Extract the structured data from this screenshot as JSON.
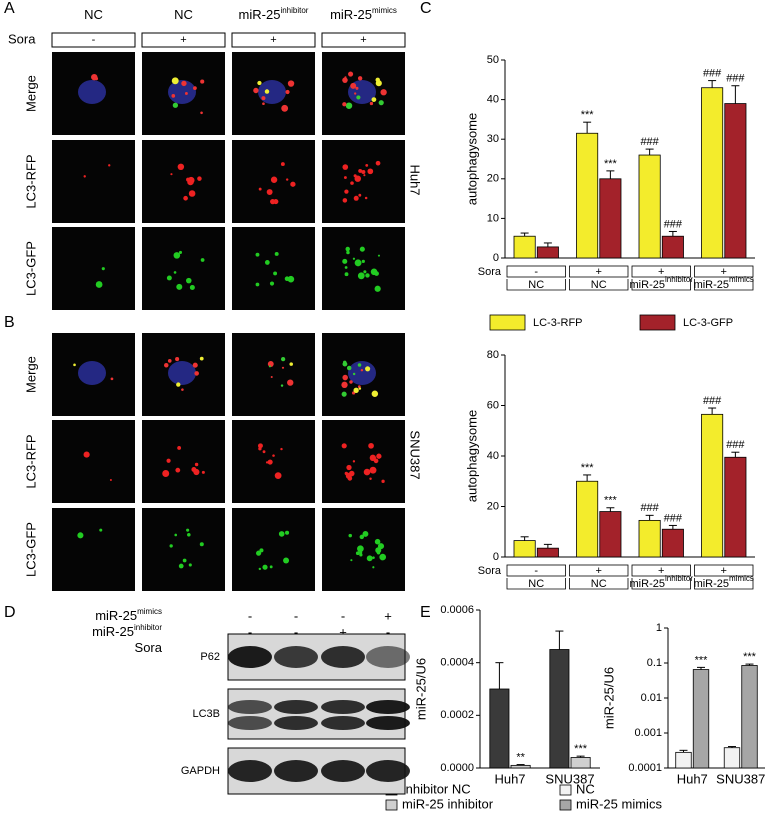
{
  "panel_labels": [
    "A",
    "B",
    "C",
    "D",
    "E"
  ],
  "microscopy": {
    "columns": [
      {
        "text": "NC"
      },
      {
        "text": "NC"
      },
      {
        "text": "miR-25",
        "sup": "inhibitor"
      },
      {
        "text": "miR-25",
        "sup": "mimics"
      }
    ],
    "sora_label": "Sora",
    "sora": [
      "-",
      "+",
      "+",
      "+"
    ],
    "rows": [
      "Merge",
      "LC3-RFP",
      "LC3-GFP"
    ],
    "cell_lines": [
      "Huh7",
      "SNU387"
    ]
  },
  "chart_data": [
    {
      "type": "bar",
      "ylabel": "autophagysome",
      "categories": [
        {
          "text": "NC"
        },
        {
          "text": "NC"
        },
        {
          "text": "miR-25",
          "sup": "inhibitor"
        },
        {
          "text": "miR-25",
          "sup": "mimics"
        }
      ],
      "sora_label": "Sora",
      "sora": [
        "-",
        "+",
        "+",
        "+"
      ],
      "ylim": [
        0,
        50
      ],
      "yticks": [
        0,
        10,
        20,
        30,
        40,
        50
      ],
      "series": [
        {
          "name": "LC-3-RFP",
          "color": "#f3ec2c",
          "values": [
            5.5,
            31.5,
            26,
            43
          ],
          "errors": [
            0.8,
            2.8,
            1.5,
            1.8
          ],
          "annotations": [
            null,
            "***",
            "###",
            "###"
          ]
        },
        {
          "name": "LC-3-GFP",
          "color": "#a3222a",
          "values": [
            2.8,
            20,
            5.5,
            39
          ],
          "errors": [
            1,
            2,
            1.2,
            4.5
          ],
          "annotations": [
            null,
            "***",
            "###",
            "###"
          ]
        }
      ]
    },
    {
      "type": "bar",
      "ylabel": "autophagysome",
      "categories": [
        {
          "text": "NC"
        },
        {
          "text": "NC"
        },
        {
          "text": "miR-25",
          "sup": "inhibitor"
        },
        {
          "text": "miR-25",
          "sup": "mimics"
        }
      ],
      "sora_label": "Sora",
      "sora": [
        "-",
        "+",
        "+",
        "+"
      ],
      "ylim": [
        0,
        80
      ],
      "yticks": [
        0,
        20,
        40,
        60,
        80
      ],
      "series": [
        {
          "color": "#f3ec2c",
          "values": [
            6.5,
            30,
            14.5,
            56.5
          ],
          "errors": [
            1.5,
            2.5,
            2,
            2.5
          ],
          "annotations": [
            null,
            "***",
            "###",
            "###"
          ]
        },
        {
          "color": "#a3222a",
          "values": [
            3.5,
            18,
            11,
            39.5
          ],
          "errors": [
            1.5,
            1.5,
            1.5,
            2
          ],
          "annotations": [
            null,
            "***",
            "###",
            "###"
          ]
        }
      ]
    },
    {
      "type": "bar",
      "ylabel": "miR-25/U6",
      "categories": [
        "Huh7",
        "SNU387"
      ],
      "ylim": [
        0,
        0.0006
      ],
      "yticks": [
        {
          "value": 0,
          "label": "0.0000"
        },
        0.0002,
        0.0004,
        0.0006
      ],
      "series": [
        {
          "name": "Inhibitor NC",
          "color": "#3a3a3a",
          "values": [
            0.0003,
            0.00045
          ],
          "errors": [
            0.0001,
            7e-05
          ],
          "annotations": [
            null,
            null
          ]
        },
        {
          "name": "miR-25 inhibitor",
          "color": "#cfcfcf",
          "values": [
            1e-05,
            4e-05
          ],
          "errors": [
            3e-06,
            5e-06
          ],
          "annotations": [
            "**",
            "***"
          ]
        }
      ]
    },
    {
      "type": "bar",
      "ylabel": "miR-25/U6",
      "categories": [
        "Huh7",
        "SNU387"
      ],
      "log": true,
      "ylim": [
        0.0001,
        1
      ],
      "yticks": [
        0.0001,
        0.001,
        0.01,
        0.1,
        1
      ],
      "series": [
        {
          "name": "NC",
          "color": "#f2f2f2",
          "values": [
            0.00028,
            0.00038
          ],
          "errors": [
            4e-05,
            3e-05
          ],
          "annotations": [
            null,
            null
          ]
        },
        {
          "name": "miR-25 mimics",
          "color": "#a6a6a6",
          "values": [
            0.065,
            0.085
          ],
          "errors": [
            0.01,
            0.008
          ],
          "annotations": [
            "***",
            "***"
          ]
        }
      ]
    }
  ],
  "western_blot": {
    "rows": [
      {
        "label": {
          "text": "miR-25",
          "sup": "mimics"
        },
        "lanes": [
          "-",
          "-",
          "-",
          "+"
        ]
      },
      {
        "label": {
          "text": "miR-25",
          "sup": "inhibitor"
        },
        "lanes": [
          "-",
          "-",
          "+",
          "-"
        ]
      },
      {
        "label": {
          "text": "Sora"
        },
        "lanes": [
          "-",
          "+",
          "+",
          "+"
        ]
      }
    ],
    "bands": [
      "P62",
      "LC3B",
      "GAPDH"
    ]
  }
}
